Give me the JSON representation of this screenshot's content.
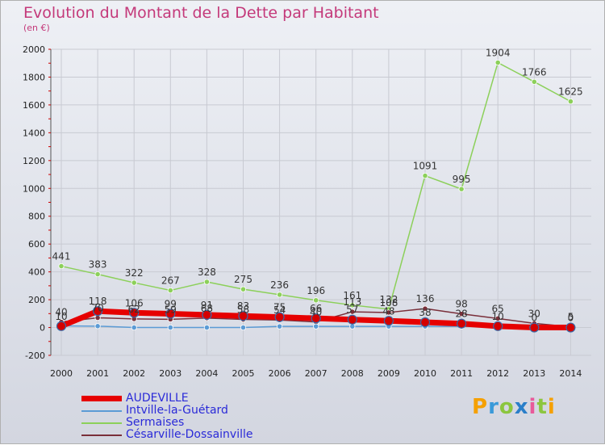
{
  "header": {
    "title": "Evolution du Montant de la Dette par Habitant",
    "subtitle": "(en €)"
  },
  "logo": {
    "text": "Proxiti"
  },
  "chart_data": {
    "type": "line",
    "title": "Evolution du Montant de la Dette par Habitant",
    "subtitle": "(en €)",
    "categories": [
      "2000",
      "2001",
      "2002",
      "2003",
      "2004",
      "2005",
      "2006",
      "2007",
      "2008",
      "2009",
      "2010",
      "2011",
      "2012",
      "2013",
      "2014"
    ],
    "ylim": [
      -200,
      2000
    ],
    "yticks": [
      -200,
      0,
      200,
      400,
      600,
      800,
      1000,
      1200,
      1400,
      1600,
      1800,
      2000
    ],
    "grid": true,
    "legend_position": "bottom-left",
    "series": [
      {
        "name": "AUDEVILLE",
        "color": "#e60000",
        "width": 7,
        "values": [
          10,
          118,
          106,
          99,
          91,
          83,
          75,
          66,
          57,
          48,
          38,
          28,
          10,
          0,
          0
        ],
        "labels": [
          "10",
          "118",
          "106",
          "99",
          "91",
          "83",
          "75",
          "66",
          "57",
          "48",
          "38",
          "28",
          "10",
          "0",
          "0"
        ]
      },
      {
        "name": "Intville-la-Guétard",
        "color": "#5b9bd5",
        "width": 1.5,
        "values": [
          12,
          10,
          0,
          0,
          0,
          0,
          8,
          8,
          8,
          8,
          8,
          8,
          8,
          8,
          8
        ],
        "labels": []
      },
      {
        "name": "Sermaises",
        "color": "#8cd05a",
        "width": 1.5,
        "values": [
          441,
          383,
          322,
          267,
          328,
          275,
          236,
          196,
          161,
          132,
          1091,
          995,
          1904,
          1766,
          1625
        ],
        "labels": [
          "441",
          "383",
          "322",
          "267",
          "328",
          "275",
          "236",
          "196",
          "161",
          "132",
          "1091",
          "995",
          "1904",
          "1766",
          "1625"
        ]
      },
      {
        "name": "Césarville-Dossainville",
        "color": "#7a2f3a",
        "width": 1.5,
        "values": [
          40,
          70,
          62,
          59,
          68,
          58,
          54,
          40,
          113,
          108,
          136,
          98,
          65,
          30,
          5
        ],
        "labels": [
          "40",
          "70",
          "62",
          "59",
          "68",
          "58",
          "54",
          "40",
          "113",
          "108",
          "136",
          "98",
          "65",
          "30",
          "5"
        ]
      }
    ]
  }
}
